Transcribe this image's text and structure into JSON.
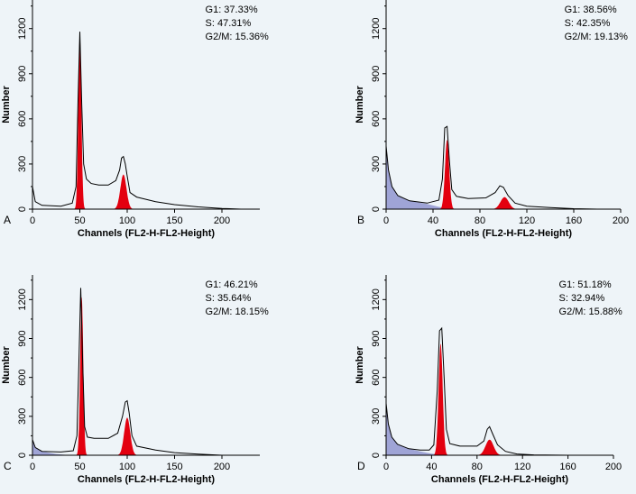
{
  "background_color": "#eef4f8",
  "colors": {
    "g1_g2_fill": "#e3000f",
    "debris_fill": "#9fa4d6",
    "outline": "#000000"
  },
  "chart_data": [
    {
      "type": "area",
      "panel_label": "A",
      "xlabel": "Channels (FL2-H-FL2-Height)",
      "ylabel": "Number",
      "xlim": [
        0,
        240
      ],
      "ylim": [
        0,
        1390
      ],
      "xticks": [
        0,
        50,
        100,
        150,
        200
      ],
      "yticks": [
        0,
        300,
        600,
        900,
        1200
      ],
      "stats": {
        "G1": "37.33%",
        "S": "47.31%",
        "G2M": "15.36%"
      },
      "g1_peak": {
        "channel": 50,
        "height": 1170
      },
      "g2_peak": {
        "channel": 96,
        "height": 230
      },
      "histogram_points": [
        [
          0,
          150
        ],
        [
          3,
          50
        ],
        [
          10,
          25
        ],
        [
          30,
          20
        ],
        [
          42,
          40
        ],
        [
          46,
          150
        ],
        [
          48,
          700
        ],
        [
          50,
          1180
        ],
        [
          52,
          700
        ],
        [
          54,
          300
        ],
        [
          57,
          200
        ],
        [
          62,
          170
        ],
        [
          70,
          160
        ],
        [
          80,
          160
        ],
        [
          88,
          190
        ],
        [
          92,
          260
        ],
        [
          94,
          340
        ],
        [
          96,
          350
        ],
        [
          98,
          300
        ],
        [
          100,
          220
        ],
        [
          103,
          110
        ],
        [
          110,
          80
        ],
        [
          130,
          50
        ],
        [
          150,
          30
        ],
        [
          175,
          15
        ],
        [
          200,
          5
        ],
        [
          220,
          0
        ]
      ],
      "debris_points": [],
      "stats_label_g1": "G1: 37.33%",
      "stats_label_s": "S: 47.31%",
      "stats_label_g2m": "G2/M: 15.36%"
    },
    {
      "type": "area",
      "panel_label": "B",
      "xlabel": "Channels (FL2-H-FL2-Height)",
      "ylabel": "Number",
      "xlim": [
        0,
        200
      ],
      "ylim": [
        0,
        1390
      ],
      "xticks": [
        0,
        40,
        80,
        120,
        160,
        200
      ],
      "yticks": [
        0,
        300,
        600,
        900,
        1200
      ],
      "stats": {
        "G1": "38.56%",
        "S": "42.35%",
        "G2M": "19.13%"
      },
      "g1_peak": {
        "channel": 52,
        "height": 460
      },
      "g2_peak": {
        "channel": 101,
        "height": 80
      },
      "histogram_points": [
        [
          0,
          420
        ],
        [
          2,
          260
        ],
        [
          5,
          150
        ],
        [
          10,
          90
        ],
        [
          20,
          55
        ],
        [
          35,
          40
        ],
        [
          45,
          60
        ],
        [
          48,
          200
        ],
        [
          50,
          540
        ],
        [
          52,
          550
        ],
        [
          54,
          320
        ],
        [
          56,
          130
        ],
        [
          60,
          85
        ],
        [
          70,
          70
        ],
        [
          85,
          75
        ],
        [
          93,
          110
        ],
        [
          97,
          155
        ],
        [
          100,
          145
        ],
        [
          104,
          90
        ],
        [
          110,
          40
        ],
        [
          120,
          20
        ],
        [
          140,
          10
        ],
        [
          160,
          3
        ],
        [
          180,
          0
        ],
        [
          200,
          0
        ]
      ],
      "debris_points": [
        [
          0,
          420
        ],
        [
          2,
          260
        ],
        [
          5,
          150
        ],
        [
          10,
          90
        ],
        [
          20,
          55
        ],
        [
          35,
          35
        ],
        [
          45,
          15
        ],
        [
          55,
          5
        ],
        [
          70,
          0
        ]
      ],
      "stats_label_g1": "G1: 38.56%",
      "stats_label_s": "S: 42.35%",
      "stats_label_g2m": "G2/M: 19.13%"
    },
    {
      "type": "area",
      "panel_label": "C",
      "xlabel": "Channels (FL2-H-FL2-Height)",
      "ylabel": "Number",
      "xlim": [
        0,
        240
      ],
      "ylim": [
        0,
        1390
      ],
      "xticks": [
        0,
        50,
        100,
        150,
        200
      ],
      "yticks": [
        0,
        300,
        600,
        900,
        1200
      ],
      "stats": {
        "G1": "46.21%",
        "S": "35.64%",
        "G2M": "18.15%"
      },
      "g1_peak": {
        "channel": 52,
        "height": 1220
      },
      "g2_peak": {
        "channel": 100,
        "height": 290
      },
      "histogram_points": [
        [
          0,
          120
        ],
        [
          3,
          60
        ],
        [
          10,
          30
        ],
        [
          30,
          25
        ],
        [
          43,
          35
        ],
        [
          47,
          150
        ],
        [
          49,
          700
        ],
        [
          51,
          1290
        ],
        [
          53,
          700
        ],
        [
          55,
          220
        ],
        [
          58,
          140
        ],
        [
          65,
          130
        ],
        [
          80,
          130
        ],
        [
          90,
          170
        ],
        [
          95,
          300
        ],
        [
          98,
          410
        ],
        [
          100,
          420
        ],
        [
          102,
          330
        ],
        [
          105,
          150
        ],
        [
          110,
          70
        ],
        [
          130,
          40
        ],
        [
          150,
          20
        ],
        [
          175,
          8
        ],
        [
          200,
          0
        ],
        [
          220,
          0
        ]
      ],
      "debris_points": [
        [
          0,
          120
        ],
        [
          3,
          60
        ],
        [
          10,
          30
        ],
        [
          25,
          10
        ],
        [
          40,
          0
        ]
      ],
      "stats_label_g1": "G1: 46.21%",
      "stats_label_s": "S: 35.64%",
      "stats_label_g2m": "G2/M: 18.15%"
    },
    {
      "type": "area",
      "panel_label": "D",
      "xlabel": "Channels (FL2-H-FL2-Height)",
      "ylabel": "Number",
      "xlim": [
        0,
        200
      ],
      "ylim": [
        0,
        1390
      ],
      "xticks": [
        0,
        40,
        80,
        120,
        160,
        200
      ],
      "yticks": [
        0,
        300,
        600,
        900,
        1200
      ],
      "stats": {
        "G1": "51.18%",
        "S": "32.94%",
        "G2M": "15.88%"
      },
      "g1_peak": {
        "channel": 48,
        "height": 860
      },
      "g2_peak": {
        "channel": 91,
        "height": 120
      },
      "histogram_points": [
        [
          0,
          400
        ],
        [
          2,
          240
        ],
        [
          5,
          140
        ],
        [
          10,
          85
        ],
        [
          20,
          50
        ],
        [
          30,
          40
        ],
        [
          38,
          40
        ],
        [
          42,
          80
        ],
        [
          45,
          500
        ],
        [
          47,
          960
        ],
        [
          49,
          980
        ],
        [
          51,
          600
        ],
        [
          53,
          200
        ],
        [
          56,
          90
        ],
        [
          65,
          70
        ],
        [
          80,
          70
        ],
        [
          86,
          110
        ],
        [
          89,
          200
        ],
        [
          91,
          220
        ],
        [
          94,
          160
        ],
        [
          98,
          80
        ],
        [
          105,
          30
        ],
        [
          115,
          10
        ],
        [
          130,
          3
        ],
        [
          160,
          0
        ],
        [
          200,
          0
        ]
      ],
      "debris_points": [
        [
          0,
          400
        ],
        [
          2,
          240
        ],
        [
          5,
          140
        ],
        [
          10,
          85
        ],
        [
          20,
          50
        ],
        [
          30,
          30
        ],
        [
          40,
          12
        ],
        [
          55,
          3
        ],
        [
          70,
          0
        ]
      ],
      "stats_label_g1": "G1: 51.18%",
      "stats_label_s": "S: 32.94%",
      "stats_label_g2m": "G2/M: 15.88%"
    }
  ]
}
